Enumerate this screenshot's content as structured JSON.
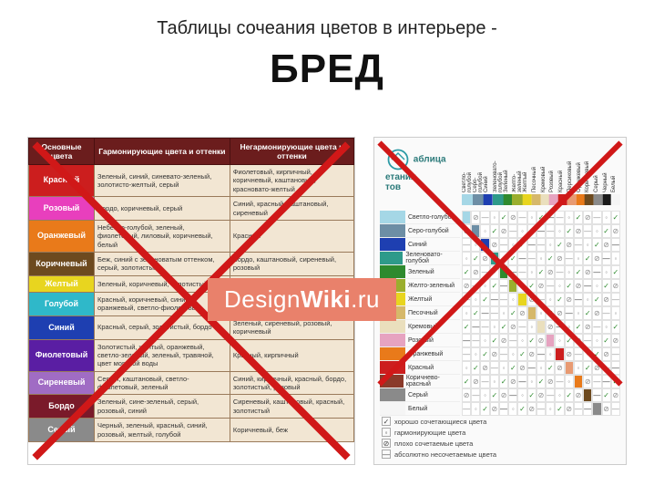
{
  "title": "Таблицы сочеания цветов в интерьере -",
  "big_word": "БРЕД",
  "watermark": {
    "p1": "Design",
    "p2": "Wiki",
    "p3": ".ru",
    "bg": "#e9816b"
  },
  "left_table": {
    "headers": [
      "Основные цвета",
      "Гармонирующие цвета и оттенки",
      "Негармонирующие цвета и оттенки"
    ],
    "rows": [
      {
        "name": "Красный",
        "color": "#cc1e1e",
        "good": "Зеленый, синий, синевато-зеленый, золотисто-желтый, серый",
        "bad": "Фиолетовый, кирпичный, коричневый, каштановый, красновато-желтый"
      },
      {
        "name": "Розовый",
        "color": "#e83fbd",
        "good": "Бордо, коричневый, серый",
        "bad": "Синий, красный, каштановый, сиреневый"
      },
      {
        "name": "Оранжевый",
        "color": "#e97a1a",
        "good": "Небесно-голубой, зеленый, фиолетовый, лиловый, коричневый, белый",
        "bad": "Красный"
      },
      {
        "name": "Коричневый",
        "color": "#6d4a1f",
        "good": "Беж, синий с зеленоватым оттенком, серый, золотистый",
        "bad": "Бордо, каштановый, сиреневый, розовый"
      },
      {
        "name": "Желтый",
        "color": "#e8d51f",
        "good": "Зеленый, коричневый, золотистый",
        "bad": "Бордо, розовый"
      },
      {
        "name": "Голубой",
        "color": "#2fb8c9",
        "good": "Красный, коричневый, синий, оранжевый, светло-фиолетовый",
        "bad": "Бордо, сиреневый"
      },
      {
        "name": "Синий",
        "color": "#1e3fb1",
        "good": "Красный, серый, золотистый, бордо",
        "bad": "Зеленый, сиреневый, розовый, коричневый"
      },
      {
        "name": "Фиолетовый",
        "color": "#5a1ea3",
        "good": "Золотистый, желтый, оранжевый, светло-зеленый, зеленый, травяной, цвет морской воды",
        "bad": "Красный, кирпичный"
      },
      {
        "name": "Сиреневый",
        "color": "#a06cc4",
        "good": "Серый, каштановый, светло-фиолетовый, зеленый",
        "bad": "Синий, кирпичный, красный, бордо, золотистый, розовый"
      },
      {
        "name": "Бордо",
        "color": "#7a1a2a",
        "good": "Зеленый, сине-зеленый, серый, розовый, синий",
        "bad": "Сиреневый, каштановый, красный, золотистый"
      },
      {
        "name": "Серый",
        "color": "#8a8a8a",
        "good": "Черный, зеленый, красный, синий, розовый, желтый, голубой",
        "bad": "Коричневый, беж"
      }
    ]
  },
  "right_matrix": {
    "label1": "аблица",
    "label2": "етания",
    "label3": "тов",
    "columns": [
      {
        "name": "Светло-голубой",
        "color": "#a5d7e6"
      },
      {
        "name": "Серо-голубой",
        "color": "#6d8ea5"
      },
      {
        "name": "Синий",
        "color": "#1e3fb1"
      },
      {
        "name": "Зеленовато-голубой",
        "color": "#2e9a8a"
      },
      {
        "name": "Зеленый",
        "color": "#2e8a2e"
      },
      {
        "name": "Желто-зеленый",
        "color": "#9aae2e"
      },
      {
        "name": "Желтый",
        "color": "#e8d51f"
      },
      {
        "name": "Песочный",
        "color": "#d6b86a"
      },
      {
        "name": "Кремовый",
        "color": "#eadfbd"
      },
      {
        "name": "Розовый",
        "color": "#e6a3c0"
      },
      {
        "name": "Красный",
        "color": "#cc1e1e"
      },
      {
        "name": "Персиковый",
        "color": "#e89a72"
      },
      {
        "name": "Оранжевый",
        "color": "#e97a1a"
      },
      {
        "name": "Коричневый",
        "color": "#6d4a1f"
      },
      {
        "name": "Серый",
        "color": "#8a8a8a"
      },
      {
        "name": "Черный",
        "color": "#1a1a1a"
      },
      {
        "name": "Белый",
        "color": "#f5f5f5"
      }
    ],
    "row_labels": [
      {
        "name": "Светло-голубой",
        "color": "#a5d7e6"
      },
      {
        "name": "Серо-голубой",
        "color": "#6d8ea5"
      },
      {
        "name": "Синий",
        "color": "#1e3fb1"
      },
      {
        "name": "Зеленовато-голубой",
        "color": "#2e9a8a"
      },
      {
        "name": "Зеленый",
        "color": "#2e8a2e"
      },
      {
        "name": "Желто-зеленый",
        "color": "#9aae2e"
      },
      {
        "name": "Желтый",
        "color": "#e8d51f"
      },
      {
        "name": "Песочный",
        "color": "#d6b86a"
      },
      {
        "name": "Кремовый",
        "color": "#eadfbd"
      },
      {
        "name": "Розовый",
        "color": "#e6a3c0"
      },
      {
        "name": "Оранжевый",
        "color": "#e97a1a"
      },
      {
        "name": "Красный",
        "color": "#cc1e1e"
      },
      {
        "name": "Коричнево-красный",
        "color": "#8a3a2a"
      },
      {
        "name": "Серый",
        "color": "#8a8a8a"
      },
      {
        "name": "Белый",
        "color": "#f5f5f5"
      }
    ],
    "legend": [
      {
        "sym": "✓",
        "text": "хорошо сочетающиеся цвета"
      },
      {
        "sym": "◦",
        "text": "гармонирующие цвета"
      },
      {
        "sym": "⊘",
        "text": "плохо сочетаемые цвета"
      },
      {
        "sym": "—",
        "text": "абсолютно несочетаемые цвета"
      }
    ]
  },
  "cross_color": "#d01818"
}
